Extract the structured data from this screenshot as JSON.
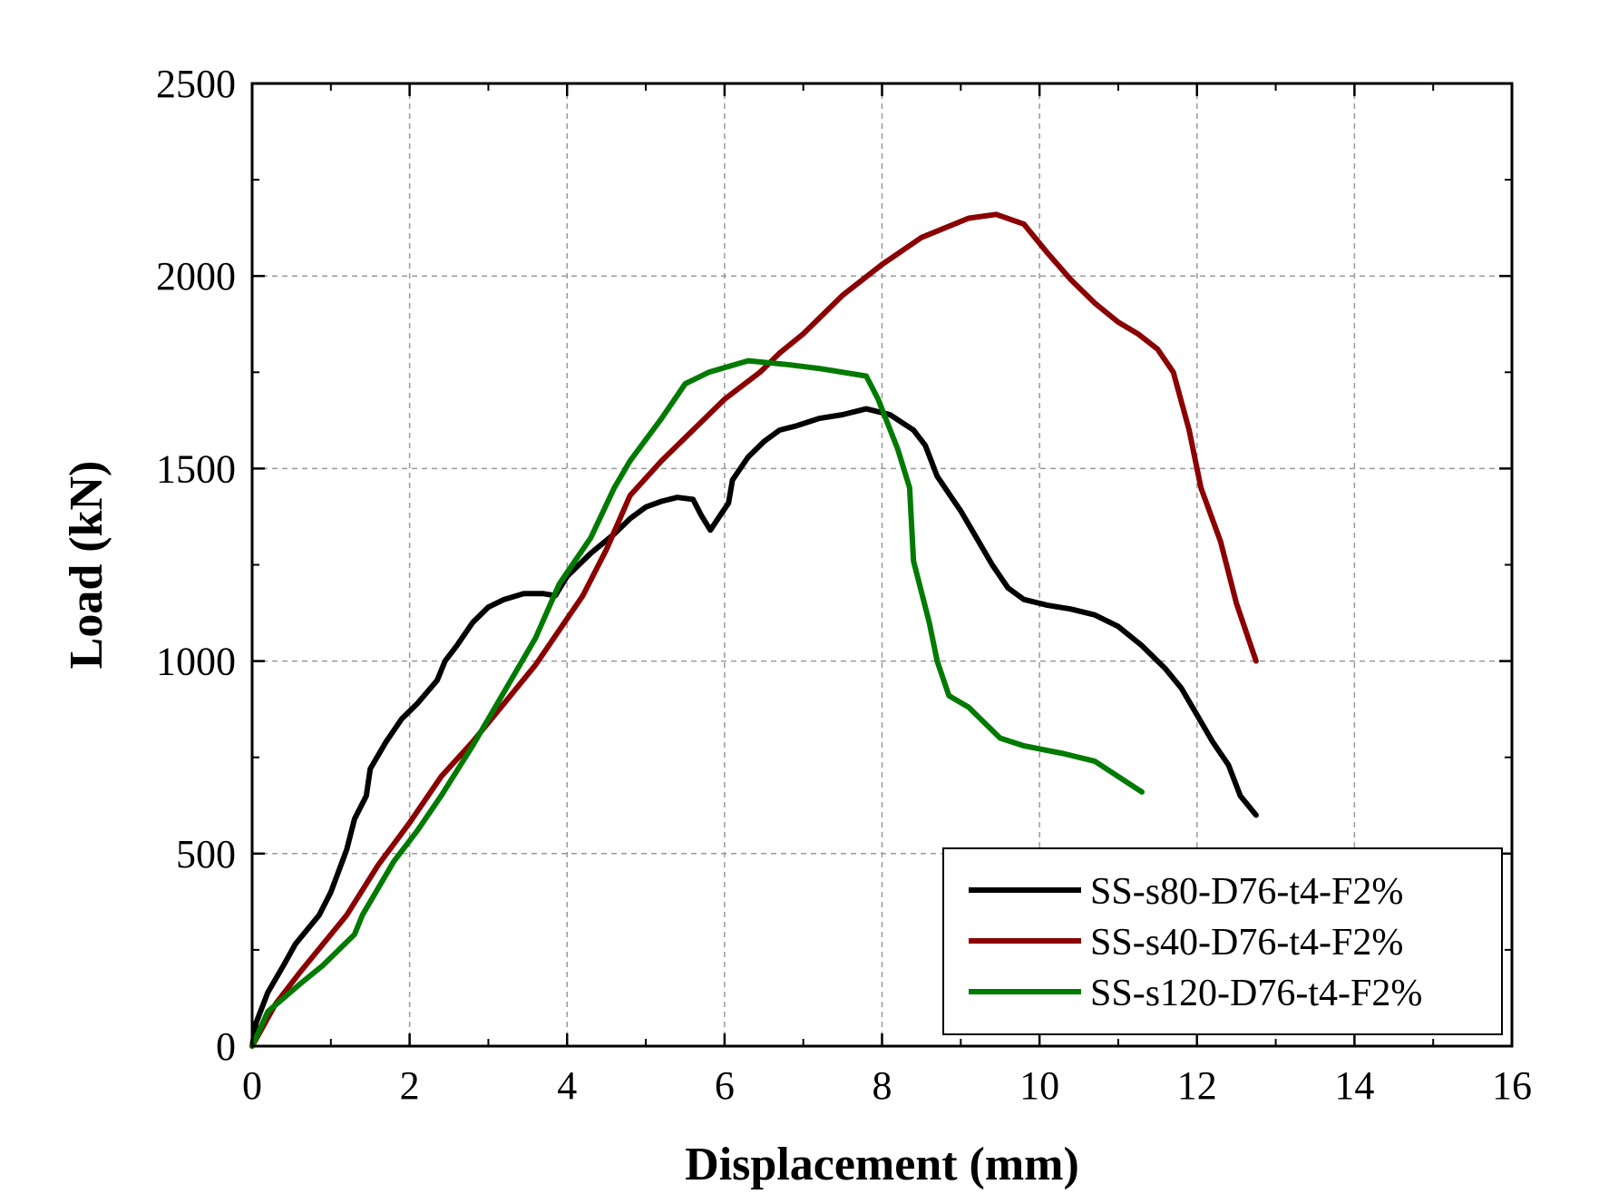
{
  "chart_data": {
    "type": "line",
    "title": "",
    "xlabel": "Displacement (mm)",
    "ylabel": "Load (kN)",
    "xlim": [
      0,
      16
    ],
    "ylim": [
      0,
      2500
    ],
    "xticks": [
      0,
      2,
      4,
      6,
      8,
      10,
      12,
      14,
      16
    ],
    "yticks": [
      0,
      500,
      1000,
      1500,
      2000,
      2500
    ],
    "grid": true,
    "legend_position": "bottom-right",
    "series": [
      {
        "name": "SS-s80-D76-t4-F2%",
        "color": "#000000",
        "points": [
          [
            0,
            0
          ],
          [
            0.05,
            60
          ],
          [
            0.2,
            140
          ],
          [
            0.4,
            210
          ],
          [
            0.55,
            265
          ],
          [
            0.85,
            340
          ],
          [
            1.0,
            400
          ],
          [
            1.2,
            510
          ],
          [
            1.3,
            590
          ],
          [
            1.45,
            650
          ],
          [
            1.5,
            720
          ],
          [
            1.7,
            790
          ],
          [
            1.9,
            850
          ],
          [
            2.1,
            890
          ],
          [
            2.35,
            950
          ],
          [
            2.45,
            1000
          ],
          [
            2.6,
            1040
          ],
          [
            2.8,
            1100
          ],
          [
            3.0,
            1140
          ],
          [
            3.2,
            1160
          ],
          [
            3.45,
            1175
          ],
          [
            3.7,
            1175
          ],
          [
            3.85,
            1170
          ],
          [
            4.0,
            1220
          ],
          [
            4.3,
            1280
          ],
          [
            4.6,
            1330
          ],
          [
            4.8,
            1370
          ],
          [
            5.0,
            1400
          ],
          [
            5.2,
            1415
          ],
          [
            5.4,
            1425
          ],
          [
            5.6,
            1420
          ],
          [
            5.7,
            1380
          ],
          [
            5.82,
            1340
          ],
          [
            5.95,
            1380
          ],
          [
            6.05,
            1410
          ],
          [
            6.1,
            1470
          ],
          [
            6.3,
            1530
          ],
          [
            6.5,
            1570
          ],
          [
            6.7,
            1600
          ],
          [
            6.9,
            1610
          ],
          [
            7.2,
            1630
          ],
          [
            7.5,
            1640
          ],
          [
            7.8,
            1655
          ],
          [
            8.1,
            1640
          ],
          [
            8.4,
            1600
          ],
          [
            8.55,
            1560
          ],
          [
            8.7,
            1480
          ],
          [
            8.9,
            1420
          ],
          [
            9.0,
            1390
          ],
          [
            9.2,
            1320
          ],
          [
            9.4,
            1250
          ],
          [
            9.6,
            1190
          ],
          [
            9.8,
            1160
          ],
          [
            10.1,
            1145
          ],
          [
            10.4,
            1135
          ],
          [
            10.7,
            1120
          ],
          [
            11.0,
            1090
          ],
          [
            11.3,
            1040
          ],
          [
            11.6,
            980
          ],
          [
            11.8,
            930
          ],
          [
            12.0,
            860
          ],
          [
            12.2,
            790
          ],
          [
            12.4,
            730
          ],
          [
            12.55,
            650
          ],
          [
            12.75,
            600
          ]
        ]
      },
      {
        "name": "SS-s40-D76-t4-F2%",
        "color": "#8b0000",
        "points": [
          [
            0,
            0
          ],
          [
            0.3,
            110
          ],
          [
            0.6,
            190
          ],
          [
            1.2,
            340
          ],
          [
            1.6,
            470
          ],
          [
            2.0,
            580
          ],
          [
            2.4,
            700
          ],
          [
            2.8,
            790
          ],
          [
            3.2,
            890
          ],
          [
            3.6,
            990
          ],
          [
            3.9,
            1080
          ],
          [
            4.2,
            1170
          ],
          [
            4.5,
            1290
          ],
          [
            4.8,
            1430
          ],
          [
            5.2,
            1520
          ],
          [
            5.6,
            1600
          ],
          [
            6.0,
            1680
          ],
          [
            6.45,
            1750
          ],
          [
            6.7,
            1800
          ],
          [
            7.0,
            1850
          ],
          [
            7.5,
            1950
          ],
          [
            8.0,
            2030
          ],
          [
            8.5,
            2100
          ],
          [
            9.1,
            2150
          ],
          [
            9.45,
            2160
          ],
          [
            9.8,
            2135
          ],
          [
            10.1,
            2060
          ],
          [
            10.4,
            1990
          ],
          [
            10.7,
            1930
          ],
          [
            11.0,
            1880
          ],
          [
            11.25,
            1850
          ],
          [
            11.5,
            1810
          ],
          [
            11.7,
            1750
          ],
          [
            11.9,
            1600
          ],
          [
            12.05,
            1450
          ],
          [
            12.3,
            1310
          ],
          [
            12.5,
            1150
          ],
          [
            12.75,
            1000
          ]
        ]
      },
      {
        "name": "SS-s120-D76-t4-F2%",
        "color": "#007a00",
        "points": [
          [
            0,
            0
          ],
          [
            0.2,
            90
          ],
          [
            0.6,
            160
          ],
          [
            0.9,
            210
          ],
          [
            1.3,
            290
          ],
          [
            1.4,
            340
          ],
          [
            1.6,
            410
          ],
          [
            1.8,
            480
          ],
          [
            2.1,
            560
          ],
          [
            2.4,
            650
          ],
          [
            2.8,
            780
          ],
          [
            3.2,
            920
          ],
          [
            3.6,
            1060
          ],
          [
            3.9,
            1200
          ],
          [
            4.3,
            1320
          ],
          [
            4.6,
            1450
          ],
          [
            4.8,
            1520
          ],
          [
            5.2,
            1630
          ],
          [
            5.5,
            1720
          ],
          [
            5.8,
            1750
          ],
          [
            6.3,
            1780
          ],
          [
            6.8,
            1770
          ],
          [
            7.2,
            1760
          ],
          [
            7.8,
            1740
          ],
          [
            7.95,
            1680
          ],
          [
            8.2,
            1550
          ],
          [
            8.35,
            1450
          ],
          [
            8.4,
            1260
          ],
          [
            8.6,
            1100
          ],
          [
            8.7,
            1000
          ],
          [
            8.85,
            910
          ],
          [
            9.1,
            880
          ],
          [
            9.5,
            800
          ],
          [
            9.8,
            780
          ],
          [
            10.3,
            760
          ],
          [
            10.7,
            740
          ],
          [
            11.0,
            700
          ],
          [
            11.3,
            660
          ]
        ]
      }
    ]
  }
}
